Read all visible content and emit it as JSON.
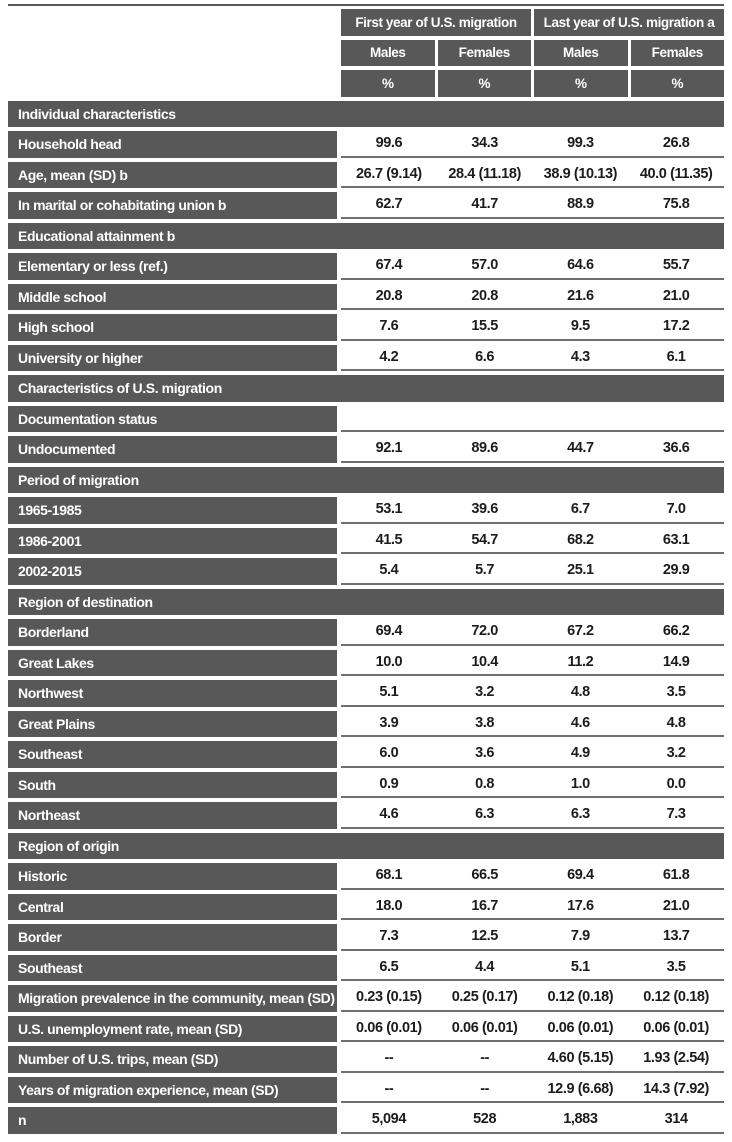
{
  "colors": {
    "header_fill": "#595858",
    "rule_line": "#6f6f71",
    "value_text": "#1c1c1c",
    "header_text": "#ffffff",
    "page_background": "#ffffff"
  },
  "header": {
    "col_groups": [
      "First year of U.S. migration",
      "Last year of U.S. migration a"
    ],
    "sex_cols": [
      "Males",
      "Females",
      "Males",
      "Females"
    ],
    "unit_cols": [
      "%",
      "%",
      "%",
      "%"
    ]
  },
  "rows": [
    {
      "type": "section",
      "label": "Individual characteristics"
    },
    {
      "type": "data",
      "label": "Household head",
      "values": [
        "99.6",
        "34.3",
        "99.3",
        "26.8"
      ]
    },
    {
      "type": "data",
      "label": "Age, mean (SD) b",
      "values": [
        "26.7 (9.14)",
        "28.4 (11.18)",
        "38.9 (10.13)",
        "40.0 (11.35)"
      ]
    },
    {
      "type": "data",
      "label": "In marital or cohabitating union b",
      "values": [
        "62.7",
        "41.7",
        "88.9",
        "75.8"
      ]
    },
    {
      "type": "section",
      "label": "Educational attainment b"
    },
    {
      "type": "data",
      "label": "Elementary or less (ref.)",
      "values": [
        "67.4",
        "57.0",
        "64.6",
        "55.7"
      ]
    },
    {
      "type": "data",
      "label": "Middle school",
      "values": [
        "20.8",
        "20.8",
        "21.6",
        "21.0"
      ]
    },
    {
      "type": "data",
      "label": "High school",
      "values": [
        "7.6",
        "15.5",
        "9.5",
        "17.2"
      ]
    },
    {
      "type": "data",
      "label": "University or higher",
      "values": [
        "4.2",
        "6.6",
        "4.3",
        "6.1"
      ]
    },
    {
      "type": "section",
      "label": "Characteristics of U.S. migration"
    },
    {
      "type": "label-only",
      "label": "Documentation status",
      "values": [
        "",
        "",
        "",
        ""
      ]
    },
    {
      "type": "data",
      "label": "Undocumented",
      "values": [
        "92.1",
        "89.6",
        "44.7",
        "36.6"
      ]
    },
    {
      "type": "section",
      "label": "Period of migration"
    },
    {
      "type": "data",
      "label": "1965-1985",
      "values": [
        "53.1",
        "39.6",
        "6.7",
        "7.0"
      ]
    },
    {
      "type": "data",
      "label": "1986-2001",
      "values": [
        "41.5",
        "54.7",
        "68.2",
        "63.1"
      ]
    },
    {
      "type": "data",
      "label": "2002-2015",
      "values": [
        "5.4",
        "5.7",
        "25.1",
        "29.9"
      ]
    },
    {
      "type": "section",
      "label": "Region of destination"
    },
    {
      "type": "data",
      "label": "Borderland",
      "values": [
        "69.4",
        "72.0",
        "67.2",
        "66.2"
      ]
    },
    {
      "type": "data",
      "label": "Great Lakes",
      "values": [
        "10.0",
        "10.4",
        "11.2",
        "14.9"
      ]
    },
    {
      "type": "data",
      "label": "Northwest",
      "values": [
        "5.1",
        "3.2",
        "4.8",
        "3.5"
      ]
    },
    {
      "type": "data",
      "label": "Great Plains",
      "values": [
        "3.9",
        "3.8",
        "4.6",
        "4.8"
      ]
    },
    {
      "type": "data",
      "label": "Southeast",
      "values": [
        "6.0",
        "3.6",
        "4.9",
        "3.2"
      ]
    },
    {
      "type": "data",
      "label": "South",
      "values": [
        "0.9",
        "0.8",
        "1.0",
        "0.0"
      ]
    },
    {
      "type": "data",
      "label": "Northeast",
      "values": [
        "4.6",
        "6.3",
        "6.3",
        "7.3"
      ]
    },
    {
      "type": "section",
      "label": "Region of origin"
    },
    {
      "type": "data",
      "label": "Historic",
      "values": [
        "68.1",
        "66.5",
        "69.4",
        "61.8"
      ]
    },
    {
      "type": "data",
      "label": "Central",
      "values": [
        "18.0",
        "16.7",
        "17.6",
        "21.0"
      ]
    },
    {
      "type": "data",
      "label": "Border",
      "values": [
        "7.3",
        "12.5",
        "7.9",
        "13.7"
      ]
    },
    {
      "type": "data",
      "label": "Southeast",
      "values": [
        "6.5",
        "4.4",
        "5.1",
        "3.5"
      ]
    },
    {
      "type": "data",
      "label": "Migration prevalence in the community, mean (SD)",
      "values": [
        "0.23 (0.15)",
        "0.25 (0.17)",
        "0.12 (0.18)",
        "0.12 (0.18)"
      ]
    },
    {
      "type": "data",
      "label": "U.S. unemployment rate, mean (SD)",
      "values": [
        "0.06 (0.01)",
        "0.06 (0.01)",
        "0.06 (0.01)",
        "0.06 (0.01)"
      ]
    },
    {
      "type": "data",
      "label": "Number of U.S. trips, mean (SD)",
      "values": [
        "--",
        "--",
        "4.60 (5.15)",
        "1.93 (2.54)"
      ]
    },
    {
      "type": "data",
      "label": "Years of migration experience, mean (SD)",
      "values": [
        "--",
        "--",
        "12.9 (6.68)",
        "14.3 (7.92)"
      ]
    },
    {
      "type": "data",
      "label": "n",
      "values": [
        "5,094",
        "528",
        "1,883",
        "314"
      ]
    }
  ]
}
